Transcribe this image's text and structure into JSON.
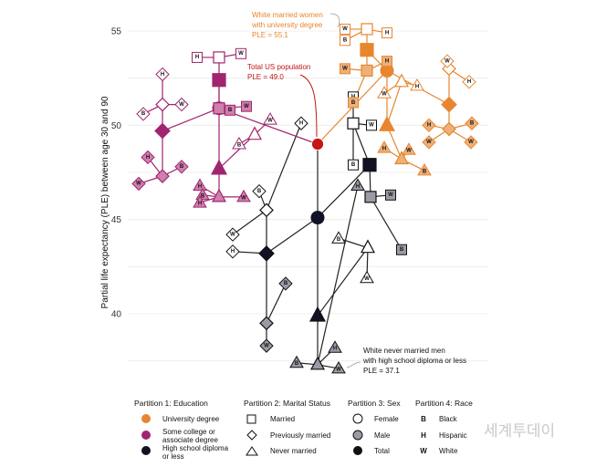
{
  "chart_data": {
    "type": "scatter",
    "ylabel": "Partial life expectancy (PLE) between age 30 and 90",
    "ylim": [
      36.5,
      55.6
    ],
    "yticks": [
      40,
      45,
      50,
      55
    ],
    "grid": true,
    "groups": [
      {
        "id": "total",
        "name": "Total US population",
        "ple": 49.0,
        "education": "total",
        "marital": "total",
        "sex": "total",
        "race": "total"
      },
      {
        "id": "hs",
        "ple": 45.1,
        "education": "high school diploma or less",
        "marital": "total",
        "sex": "total",
        "race": "total"
      },
      {
        "id": "hs_nm",
        "ple": 39.9,
        "education": "high school diploma or less",
        "marital": "never married",
        "sex": "total",
        "race": "total"
      },
      {
        "id": "hs_nm_m",
        "name": "White never married men with high school diploma or less",
        "ple": 37.3,
        "education": "high school diploma or less",
        "marital": "never married",
        "sex": "male",
        "race": "total"
      },
      {
        "id": "hs_nm_m_b",
        "ple": 37.4,
        "education": "high school diploma or less",
        "marital": "never married",
        "sex": "male",
        "race": "black"
      },
      {
        "id": "hs_nm_m_w",
        "ple": 37.1,
        "education": "high school diploma or less",
        "marital": "never married",
        "sex": "male",
        "race": "white"
      },
      {
        "id": "hs_nm_m_h",
        "ple": 38.2,
        "education": "high school diploma or less",
        "marital": "never married",
        "sex": "male",
        "race": "hispanic"
      },
      {
        "id": "hs_nm_f",
        "ple": 43.5,
        "education": "high school diploma or less",
        "marital": "never married",
        "sex": "female",
        "race": "total"
      },
      {
        "id": "hs_nm_f_b",
        "ple": 44.0,
        "education": "high school diploma or less",
        "marital": "never married",
        "sex": "female",
        "race": "black"
      },
      {
        "id": "hs_nm_f_w",
        "ple": 41.9,
        "education": "high school diploma or less",
        "marital": "never married",
        "sex": "female",
        "race": "white"
      },
      {
        "id": "hs_pm",
        "ple": 43.2,
        "education": "high school diploma or less",
        "marital": "previously married",
        "sex": "total",
        "race": "total"
      },
      {
        "id": "hs_pm_h",
        "ple": 43.3,
        "education": "high school diploma or less",
        "marital": "previously married",
        "sex": "total",
        "race": "hispanic"
      },
      {
        "id": "hs_pm_m",
        "ple": 39.5,
        "education": "high school diploma or less",
        "marital": "previously married",
        "sex": "male",
        "race": "total"
      },
      {
        "id": "hs_pm_m_b",
        "ple": 41.6,
        "education": "high school diploma or less",
        "marital": "previously married",
        "sex": "male",
        "race": "black"
      },
      {
        "id": "hs_pm_m_w",
        "ple": 38.3,
        "education": "high school diploma or less",
        "marital": "previously married",
        "sex": "male",
        "race": "white"
      },
      {
        "id": "hs_pm_f",
        "ple": 45.5,
        "education": "high school diploma or less",
        "marital": "previously married",
        "sex": "female",
        "race": "total"
      },
      {
        "id": "hs_pm_f_w",
        "ple": 44.2,
        "education": "high school diploma or less",
        "marital": "previously married",
        "sex": "female",
        "race": "white"
      },
      {
        "id": "hs_pm_f_b",
        "ple": 46.5,
        "education": "high school diploma or less",
        "marital": "previously married",
        "sex": "female",
        "race": "black"
      },
      {
        "id": "hs_pm_f_h",
        "ple": 50.1,
        "education": "high school diploma or less",
        "marital": "previously married",
        "sex": "female",
        "race": "hispanic"
      },
      {
        "id": "hs_m",
        "ple": 47.9,
        "education": "high school diploma or less",
        "marital": "married",
        "sex": "total",
        "race": "total"
      },
      {
        "id": "hs_m_f",
        "ple": 50.1,
        "education": "high school diploma or less",
        "marital": "married",
        "sex": "female",
        "race": "total"
      },
      {
        "id": "hs_m_f_w",
        "ple": 50.0,
        "education": "high school diploma or less",
        "marital": "married",
        "sex": "female",
        "race": "white"
      },
      {
        "id": "hs_m_f_h",
        "ple": 51.5,
        "education": "high school diploma or less",
        "marital": "married",
        "sex": "female",
        "race": "hispanic"
      },
      {
        "id": "hs_m_f_b",
        "ple": 47.9,
        "education": "high school diploma or less",
        "marital": "married",
        "sex": "female",
        "race": "black"
      },
      {
        "id": "hs_m_m",
        "ple": 46.2,
        "education": "high school diploma or less",
        "marital": "married",
        "sex": "male",
        "race": "total"
      },
      {
        "id": "hs_m_m_w",
        "ple": 46.3,
        "education": "high school diploma or less",
        "marital": "married",
        "sex": "male",
        "race": "white"
      },
      {
        "id": "hs_nm_m_h2",
        "ple": 46.8,
        "education": "high school diploma or less",
        "marital": "never married",
        "sex": "male",
        "race": "hispanic"
      },
      {
        "id": "hs_m_m_b",
        "ple": 43.4,
        "education": "high school diploma or less",
        "marital": "married",
        "sex": "male",
        "race": "black"
      },
      {
        "id": "sc",
        "ple": 50.9,
        "education": "some college or associate degree",
        "marital": "total",
        "sex": "total",
        "race": "total"
      },
      {
        "id": "sc_m",
        "ple": 52.4,
        "education": "some college or associate degree",
        "marital": "married",
        "sex": "total",
        "race": "total"
      },
      {
        "id": "sc_m_f",
        "ple": 53.6,
        "education": "some college or associate degree",
        "marital": "married",
        "sex": "female",
        "race": "total"
      },
      {
        "id": "sc_m_f_w",
        "ple": 53.8,
        "education": "some college or associate degree",
        "marital": "married",
        "sex": "female",
        "race": "white"
      },
      {
        "id": "sc_m_f_h",
        "ple": 53.6,
        "education": "some college or associate degree",
        "marital": "married",
        "sex": "female",
        "race": "hispanic"
      },
      {
        "id": "sc_m_m",
        "ple": 50.9,
        "education": "some college or associate degree",
        "marital": "married",
        "sex": "male",
        "race": "total"
      },
      {
        "id": "sc_m_m_w",
        "ple": 51.0,
        "education": "some college or associate degree",
        "marital": "married",
        "sex": "male",
        "race": "white"
      },
      {
        "id": "sc_m_m_b",
        "ple": 50.8,
        "education": "some college or associate degree",
        "marital": "married",
        "sex": "male",
        "race": "black"
      },
      {
        "id": "sc_nm",
        "ple": 47.7,
        "education": "some college or associate degree",
        "marital": "never married",
        "sex": "total",
        "race": "total"
      },
      {
        "id": "sc_nm_f",
        "ple": 49.5,
        "education": "some college or associate degree",
        "marital": "never married",
        "sex": "female",
        "race": "total"
      },
      {
        "id": "sc_nm_f_w",
        "ple": 50.3,
        "education": "some college or associate degree",
        "marital": "never married",
        "sex": "female",
        "race": "white"
      },
      {
        "id": "sc_nm_f_b",
        "ple": 49.0,
        "education": "some college or associate degree",
        "marital": "never married",
        "sex": "female",
        "race": "black"
      },
      {
        "id": "sc_nm_m",
        "ple": 46.2,
        "education": "some college or associate degree",
        "marital": "never married",
        "sex": "male",
        "race": "total"
      },
      {
        "id": "sc_nm_m_h",
        "ple": 46.8,
        "education": "some college or associate degree",
        "marital": "never married",
        "sex": "male",
        "race": "hispanic"
      },
      {
        "id": "sc_nm_m_b",
        "ple": 46.3,
        "education": "some college or associate degree",
        "marital": "never married",
        "sex": "male",
        "race": "black"
      },
      {
        "id": "sc_nm_m_w",
        "ple": 46.2,
        "education": "some college or associate degree",
        "marital": "never married",
        "sex": "male",
        "race": "white"
      },
      {
        "id": "sc_nm_m_h2",
        "ple": 45.9,
        "education": "some college or associate degree",
        "marital": "never married",
        "sex": "male",
        "race": "hispanic"
      },
      {
        "id": "sc_pm",
        "ple": 49.7,
        "education": "some college or associate degree",
        "marital": "previously married",
        "sex": "total",
        "race": "total"
      },
      {
        "id": "sc_pm_f",
        "ple": 51.1,
        "education": "some college or associate degree",
        "marital": "previously married",
        "sex": "female",
        "race": "total"
      },
      {
        "id": "sc_pm_f_w",
        "ple": 51.1,
        "education": "some college or associate degree",
        "marital": "previously married",
        "sex": "female",
        "race": "white"
      },
      {
        "id": "sc_pm_f_b",
        "ple": 50.6,
        "education": "some college or associate degree",
        "marital": "previously married",
        "sex": "female",
        "race": "black"
      },
      {
        "id": "sc_pm_f_h",
        "ple": 52.7,
        "education": "some college or associate degree",
        "marital": "previously married",
        "sex": "female",
        "race": "hispanic"
      },
      {
        "id": "sc_pm_m",
        "ple": 47.3,
        "education": "some college or associate degree",
        "marital": "previously married",
        "sex": "male",
        "race": "total"
      },
      {
        "id": "sc_pm_m_h",
        "ple": 48.3,
        "education": "some college or associate degree",
        "marital": "previously married",
        "sex": "male",
        "race": "hispanic"
      },
      {
        "id": "sc_pm_m_w",
        "ple": 46.9,
        "education": "some college or associate degree",
        "marital": "previously married",
        "sex": "male",
        "race": "white"
      },
      {
        "id": "sc_pm_m_b",
        "ple": 47.8,
        "education": "some college or associate degree",
        "marital": "previously married",
        "sex": "male",
        "race": "black"
      },
      {
        "id": "ud",
        "ple": 52.9,
        "education": "university degree",
        "marital": "total",
        "sex": "total",
        "race": "total"
      },
      {
        "id": "ud_m",
        "ple": 54.0,
        "education": "university degree",
        "marital": "married",
        "sex": "total",
        "race": "total"
      },
      {
        "id": "ud_m_f",
        "name": "White married women with university degree",
        "ple": 55.1,
        "education": "university degree",
        "marital": "married",
        "sex": "female",
        "race": "total"
      },
      {
        "id": "ud_m_f_w",
        "ple": 55.1,
        "education": "university degree",
        "marital": "married",
        "sex": "female",
        "race": "white"
      },
      {
        "id": "ud_m_f_h",
        "ple": 54.9,
        "education": "university degree",
        "marital": "married",
        "sex": "female",
        "race": "hispanic"
      },
      {
        "id": "ud_m_f_b",
        "ple": 54.5,
        "education": "university degree",
        "marital": "married",
        "sex": "female",
        "race": "black"
      },
      {
        "id": "ud_m_m",
        "ple": 52.9,
        "education": "university degree",
        "marital": "married",
        "sex": "male",
        "race": "total"
      },
      {
        "id": "ud_m_m_w",
        "ple": 53.0,
        "education": "university degree",
        "marital": "married",
        "sex": "male",
        "race": "white"
      },
      {
        "id": "ud_m_m_h",
        "ple": 53.4,
        "education": "university degree",
        "marital": "married",
        "sex": "male",
        "race": "hispanic"
      },
      {
        "id": "ud_m_m_b",
        "ple": 51.2,
        "education": "university degree",
        "marital": "married",
        "sex": "male",
        "race": "black"
      },
      {
        "id": "ud_nm",
        "ple": 50.0,
        "education": "university degree",
        "marital": "never married",
        "sex": "total",
        "race": "total"
      },
      {
        "id": "ud_nm_f",
        "ple": 52.3,
        "education": "university degree",
        "marital": "never married",
        "sex": "female",
        "race": "total"
      },
      {
        "id": "ud_nm_f_h",
        "ple": 52.1,
        "education": "university degree",
        "marital": "never married",
        "sex": "female",
        "race": "hispanic"
      },
      {
        "id": "ud_nm_f_w",
        "ple": 51.7,
        "education": "university degree",
        "marital": "never married",
        "sex": "female",
        "race": "white"
      },
      {
        "id": "ud_nm_m",
        "ple": 48.2,
        "education": "university degree",
        "marital": "never married",
        "sex": "male",
        "race": "total"
      },
      {
        "id": "ud_nm_m_h",
        "ple": 48.8,
        "education": "university degree",
        "marital": "never married",
        "sex": "male",
        "race": "hispanic"
      },
      {
        "id": "ud_nm_m_b",
        "ple": 47.6,
        "education": "university degree",
        "marital": "never married",
        "sex": "male",
        "race": "black"
      },
      {
        "id": "ud_nm_m_w",
        "ple": 48.7,
        "education": "university degree",
        "marital": "never married",
        "sex": "male",
        "race": "white"
      },
      {
        "id": "ud_pm",
        "ple": 51.1,
        "education": "university degree",
        "marital": "previously married",
        "sex": "total",
        "race": "total"
      },
      {
        "id": "ud_pm_f",
        "ple": 53.0,
        "education": "university degree",
        "marital": "previously married",
        "sex": "female",
        "race": "total"
      },
      {
        "id": "ud_pm_f_w",
        "ple": 53.4,
        "education": "university degree",
        "marital": "previously married",
        "sex": "female",
        "race": "white"
      },
      {
        "id": "ud_pm_f_h",
        "ple": 52.3,
        "education": "university degree",
        "marital": "previously married",
        "sex": "female",
        "race": "hispanic"
      },
      {
        "id": "ud_pm_m",
        "ple": 49.8,
        "education": "university degree",
        "marital": "previously married",
        "sex": "male",
        "race": "total"
      },
      {
        "id": "ud_pm_m_h",
        "ple": 50.0,
        "education": "university degree",
        "marital": "previously married",
        "sex": "male",
        "race": "hispanic"
      },
      {
        "id": "ud_pm_m_w",
        "ple": 49.1,
        "education": "university degree",
        "marital": "previously married",
        "sex": "male",
        "race": "white"
      },
      {
        "id": "ud_pm_m_b",
        "ple": 50.1,
        "education": "university degree",
        "marital": "previously married",
        "sex": "male",
        "race": "black"
      },
      {
        "id": "ud_pm_m_w2",
        "ple": 49.1,
        "education": "university degree",
        "marital": "previously married",
        "sex": "male",
        "race": "white"
      }
    ],
    "annotations": [
      {
        "lines": [
          "White married women",
          "with university degree",
          "PLE = 55.1"
        ],
        "color": "#e8862f"
      },
      {
        "lines": [
          "Total US population",
          "PLE = 49.0"
        ],
        "color": "#c01616"
      },
      {
        "lines": [
          "White never married men",
          "with high school diploma or less",
          "PLE = 37.1"
        ],
        "color": "#111111"
      }
    ],
    "colors": {
      "university degree": "#e8862f",
      "some college or associate degree": "#a0256e",
      "high school diploma or less": "#121226",
      "total": "#c81414",
      "male_university degree": "#eeb07a",
      "male_some college or associate degree": "#cf7fae",
      "male_high school diploma or less": "#9b9ba6"
    },
    "legend": {
      "partition1": {
        "title": "Partition 1: Education",
        "items": [
          "University degree",
          "Some college or associate degree",
          "High school diploma or less"
        ]
      },
      "partition2": {
        "title": "Partition 2: Marital Status",
        "items": [
          "Married",
          "Previously married",
          "Never married"
        ]
      },
      "partition3": {
        "title": "Partition 3: Sex",
        "items": [
          "Female",
          "Male",
          "Total"
        ]
      },
      "partition4": {
        "title": "Partition 4: Race",
        "items": [
          {
            "code": "B",
            "label": "Black"
          },
          {
            "code": "H",
            "label": "Hispanic"
          },
          {
            "code": "W",
            "label": "White"
          }
        ]
      }
    }
  },
  "watermark": "세계투데이"
}
